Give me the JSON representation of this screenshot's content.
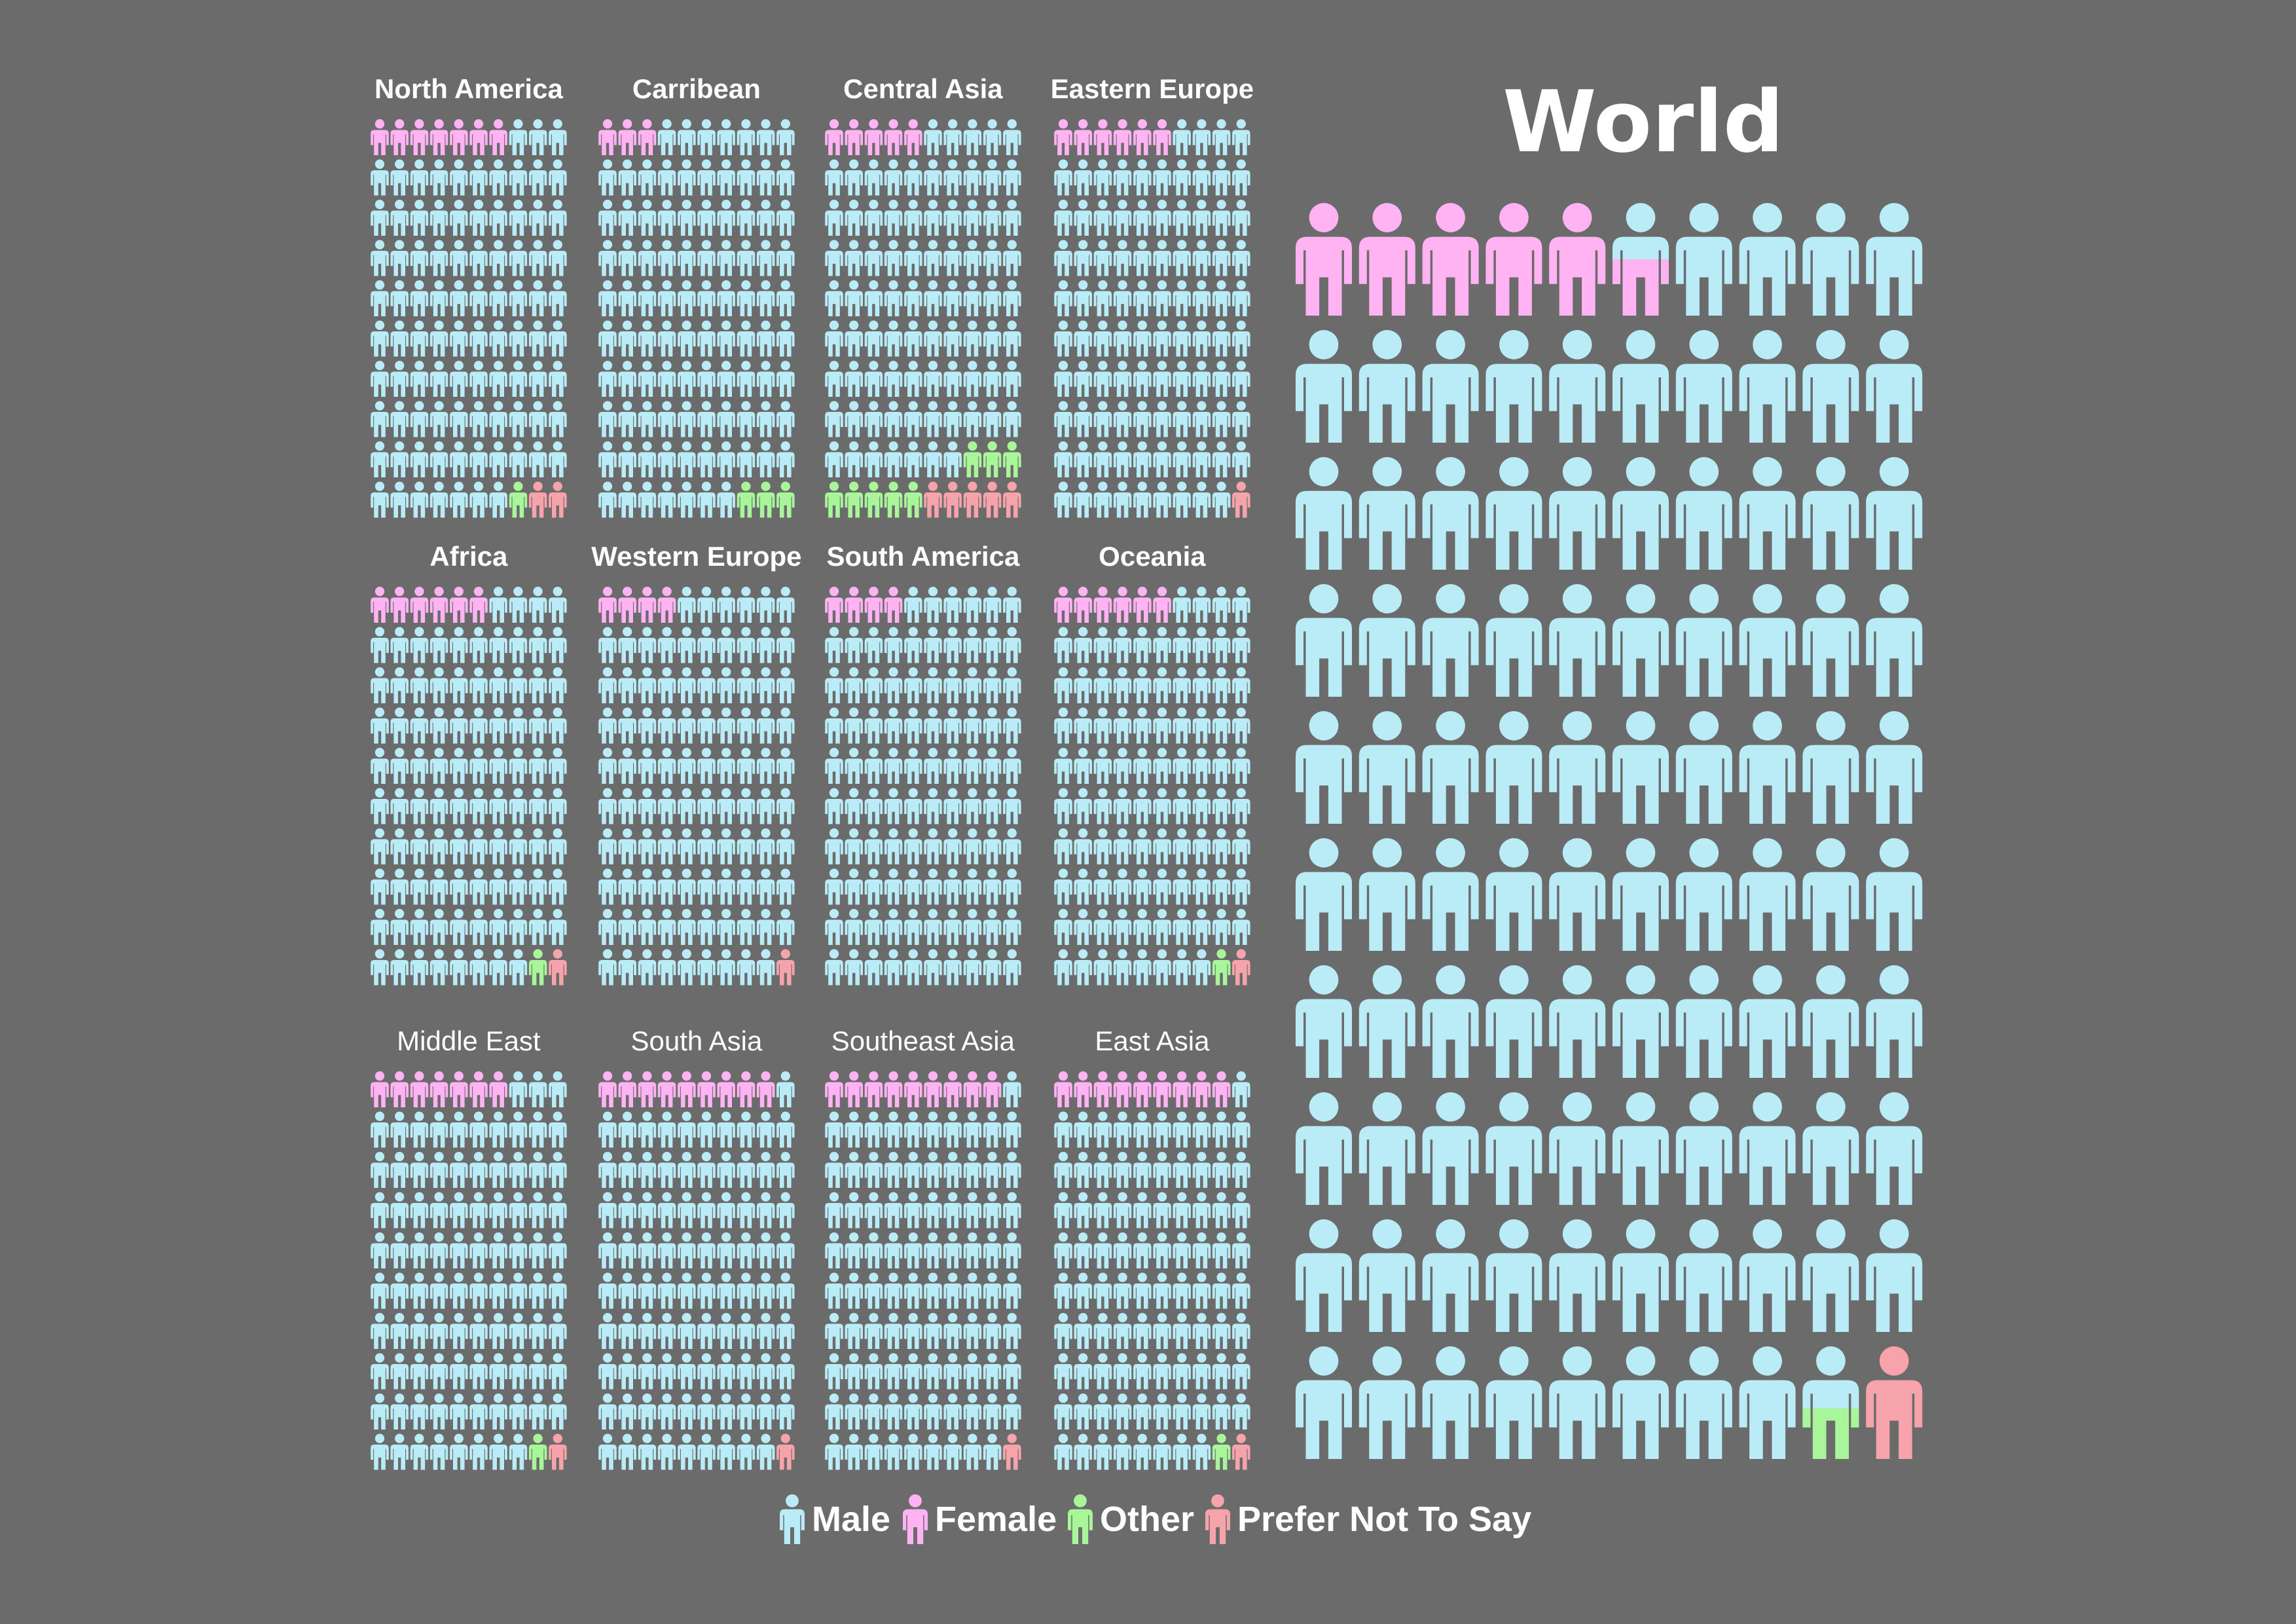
{
  "colors": {
    "background": "#6b6b6b",
    "male": "#b9ecf7",
    "female": "#ffb3f3",
    "other": "#a8f59a",
    "prefer_not_to_say": "#f7a3ab"
  },
  "world": {
    "title": "World"
  },
  "legend": [
    {
      "label": "Male",
      "color": "#b9ecf7"
    },
    {
      "label": "Female",
      "color": "#ffb3f3"
    },
    {
      "label": "Other",
      "color": "#a8f59a"
    },
    {
      "label": "Prefer Not To Say",
      "color": "#f7a3ab"
    }
  ],
  "chart_data": {
    "type": "pictogram",
    "unit": "each icon = 1% of respondents (100 icons per region)",
    "categories": [
      "Male",
      "Female",
      "Other",
      "Prefer Not To Say"
    ],
    "world": {
      "name": "World",
      "female": 5.5,
      "male": 91.9,
      "other": 1.6,
      "prefer_not_to_say": 1.0
    },
    "regions": [
      {
        "name": "North America",
        "female": 7,
        "male": 90,
        "other": 1,
        "prefer_not_to_say": 2
      },
      {
        "name": "Carribean",
        "female": 3,
        "male": 94,
        "other": 3,
        "prefer_not_to_say": 0
      },
      {
        "name": "Central Asia",
        "female": 5,
        "male": 82,
        "other": 8,
        "prefer_not_to_say": 5
      },
      {
        "name": "Eastern Europe",
        "female": 6,
        "male": 93,
        "other": 0,
        "prefer_not_to_say": 1
      },
      {
        "name": "Africa",
        "female": 6,
        "male": 92,
        "other": 1,
        "prefer_not_to_say": 1
      },
      {
        "name": "Western Europe",
        "female": 4,
        "male": 95,
        "other": 0,
        "prefer_not_to_say": 1
      },
      {
        "name": "South America",
        "female": 4,
        "male": 96,
        "other": 0,
        "prefer_not_to_say": 0
      },
      {
        "name": "Oceania",
        "female": 6,
        "male": 92,
        "other": 1,
        "prefer_not_to_say": 1
      },
      {
        "name": "Middle East",
        "female": 7,
        "male": 91,
        "other": 1,
        "prefer_not_to_say": 1
      },
      {
        "name": "South Asia",
        "female": 9,
        "male": 90,
        "other": 0,
        "prefer_not_to_say": 1
      },
      {
        "name": "Southeast Asia",
        "female": 9,
        "male": 90,
        "other": 0,
        "prefer_not_to_say": 1
      },
      {
        "name": "East Asia",
        "female": 9,
        "male": 89,
        "other": 1,
        "prefer_not_to_say": 1
      }
    ]
  }
}
